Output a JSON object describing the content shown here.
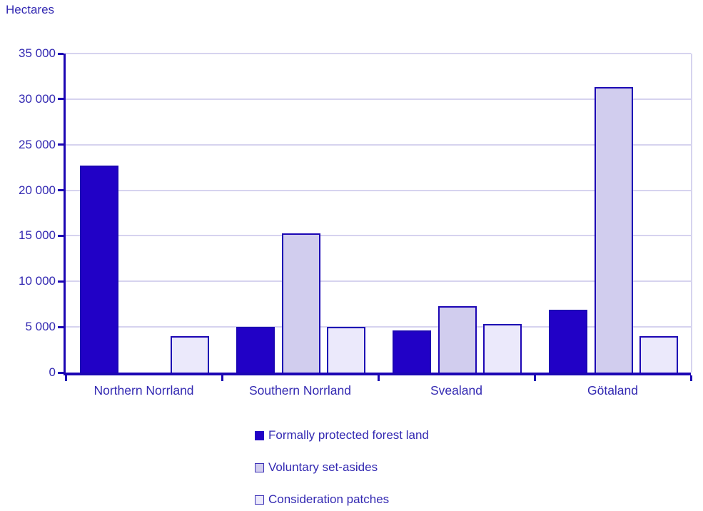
{
  "chart_data": {
    "type": "bar",
    "title": "Hectares",
    "categories": [
      "Northern Norrland",
      "Southern Norrland",
      "Svealand",
      "Götaland"
    ],
    "series": [
      {
        "name": "Formally protected forest land",
        "values": [
          22700,
          5000,
          4600,
          6900
        ],
        "fill": "#2101c6",
        "border": "#1c06b4"
      },
      {
        "name": "Voluntary set-asides",
        "values": [
          0,
          15300,
          7300,
          31300
        ],
        "fill": "#d1cdee",
        "border": "#1c06b4"
      },
      {
        "name": "Consideration patches",
        "values": [
          4000,
          5000,
          5350,
          4000
        ],
        "fill": "#ebe9fb",
        "border": "#1c06b4"
      }
    ],
    "ylim": [
      0,
      35000
    ],
    "ytick_interval": 5000,
    "ytick_labels": [
      "0",
      "5 000",
      "10 000",
      "15 000",
      "20 000",
      "25 000",
      "30 000",
      "35 000"
    ],
    "grid": true,
    "legend_position": "bottom-stacked",
    "colors": {
      "text": "#3329b2",
      "axis": "#1c06b4",
      "gridline": "#d6d3ef",
      "background": "#ffffff"
    }
  }
}
